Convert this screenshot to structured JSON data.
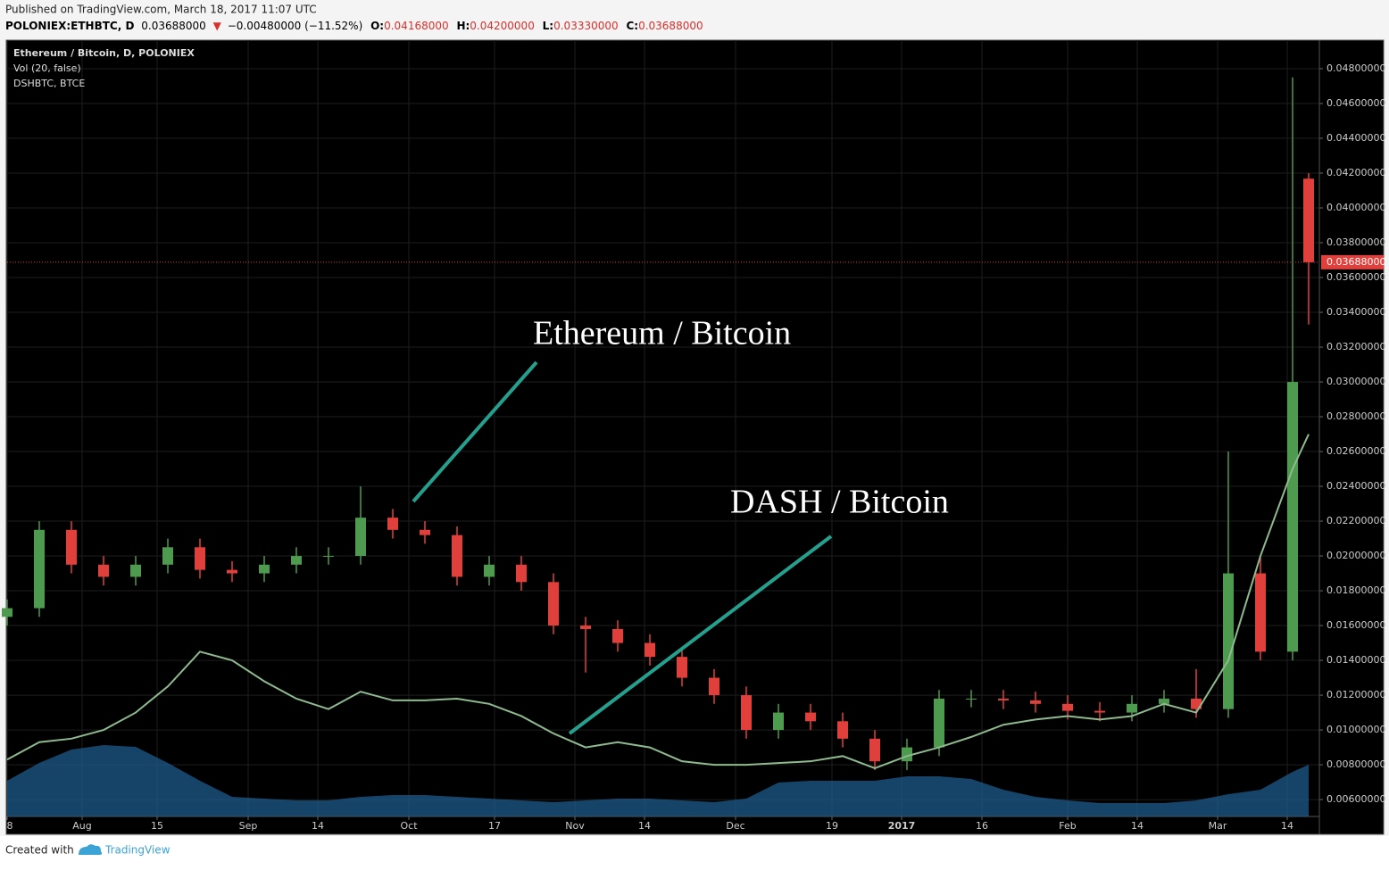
{
  "header": {
    "published": "Published on TradingView.com, March 18, 2017 11:07 UTC",
    "symbol": "POLONIEX:ETHBTC, D",
    "price": "0.03688000",
    "change": "−0.00480000 (−11.52%)",
    "ohlc": [
      {
        "key": "O:",
        "value": "0.04168000"
      },
      {
        "key": "H:",
        "value": "0.04200000"
      },
      {
        "key": "L:",
        "value": "0.03330000"
      },
      {
        "key": "C:",
        "value": "0.03688000"
      }
    ]
  },
  "chart_data": {
    "type": "candlestick",
    "x": [
      0,
      6,
      12,
      18,
      24,
      30,
      36,
      42,
      48,
      54,
      60,
      66,
      72,
      78,
      84,
      90,
      96,
      102,
      108,
      114,
      120,
      126,
      132,
      138,
      144,
      150,
      156,
      162,
      168,
      174,
      180,
      186,
      192,
      198,
      204,
      210,
      216,
      222,
      228,
      234,
      240,
      243
    ],
    "series": [
      {
        "name": "Ethereum / Bitcoin, D, POLONIEX",
        "type": "candlestick",
        "up_color": "#4e9a4e",
        "down_color": "#e0403c",
        "open": [
          0.0165,
          0.017,
          0.0215,
          0.0195,
          0.0188,
          0.0195,
          0.0205,
          0.0192,
          0.019,
          0.0195,
          0.02,
          0.02,
          0.0222,
          0.0215,
          0.0212,
          0.0188,
          0.0195,
          0.0185,
          0.016,
          0.0158,
          0.015,
          0.0142,
          0.013,
          0.012,
          0.01,
          0.011,
          0.0105,
          0.0095,
          0.0082,
          0.009,
          0.0118,
          0.0118,
          0.0117,
          0.0115,
          0.0111,
          0.011,
          0.0115,
          0.0118,
          0.0112,
          0.019,
          0.0145,
          0.04168
        ],
        "high": [
          0.0175,
          0.022,
          0.022,
          0.02,
          0.02,
          0.021,
          0.021,
          0.0197,
          0.02,
          0.0205,
          0.0205,
          0.024,
          0.0227,
          0.022,
          0.0217,
          0.02,
          0.02,
          0.019,
          0.0165,
          0.0163,
          0.0155,
          0.0147,
          0.0135,
          0.0125,
          0.0115,
          0.0115,
          0.011,
          0.01,
          0.0095,
          0.0123,
          0.0123,
          0.0123,
          0.0122,
          0.012,
          0.0116,
          0.012,
          0.0123,
          0.0135,
          0.026,
          0.02,
          0.0475,
          0.042
        ],
        "low": [
          0.016,
          0.0165,
          0.019,
          0.0183,
          0.0183,
          0.019,
          0.0187,
          0.0185,
          0.0185,
          0.019,
          0.0195,
          0.0195,
          0.021,
          0.0207,
          0.0183,
          0.0183,
          0.018,
          0.0155,
          0.0133,
          0.0145,
          0.0137,
          0.0125,
          0.0115,
          0.0095,
          0.0095,
          0.01,
          0.009,
          0.0077,
          0.0077,
          0.0085,
          0.0113,
          0.0112,
          0.011,
          0.0106,
          0.0105,
          0.0105,
          0.011,
          0.0107,
          0.0107,
          0.014,
          0.014,
          0.0333
        ],
        "close": [
          0.017,
          0.0215,
          0.0195,
          0.0188,
          0.0195,
          0.0205,
          0.0192,
          0.019,
          0.0195,
          0.02,
          0.02,
          0.0222,
          0.0215,
          0.0212,
          0.0188,
          0.0195,
          0.0185,
          0.016,
          0.0158,
          0.015,
          0.0142,
          0.013,
          0.012,
          0.01,
          0.011,
          0.0105,
          0.0095,
          0.0082,
          0.009,
          0.0118,
          0.0118,
          0.0117,
          0.0115,
          0.0111,
          0.011,
          0.0115,
          0.0118,
          0.0112,
          0.019,
          0.0145,
          0.03,
          0.03688
        ]
      },
      {
        "name": "Vol (20, false)",
        "type": "area",
        "color": "#1d5b8c",
        "values": [
          40,
          60,
          75,
          80,
          78,
          60,
          40,
          22,
          20,
          18,
          18,
          22,
          24,
          24,
          22,
          20,
          18,
          16,
          18,
          20,
          20,
          18,
          16,
          20,
          38,
          40,
          40,
          40,
          45,
          45,
          42,
          30,
          22,
          18,
          15,
          15,
          15,
          18,
          25,
          30,
          50,
          58
        ]
      },
      {
        "name": "DSHBTC, BTCE",
        "type": "line",
        "color": "#8fb98f",
        "values": [
          0.0083,
          0.0093,
          0.0095,
          0.01,
          0.011,
          0.0125,
          0.0145,
          0.014,
          0.0128,
          0.0118,
          0.0112,
          0.0122,
          0.0117,
          0.0117,
          0.0118,
          0.0115,
          0.0108,
          0.0098,
          0.009,
          0.0093,
          0.009,
          0.0082,
          0.008,
          0.008,
          0.0081,
          0.0082,
          0.0085,
          0.0078,
          0.0085,
          0.009,
          0.0096,
          0.0103,
          0.0106,
          0.0108,
          0.0106,
          0.0108,
          0.0115,
          0.011,
          0.014,
          0.02,
          0.025,
          0.027
        ]
      }
    ],
    "xlim": [
      0,
      245
    ],
    "xticks": [
      {
        "value": 0,
        "label": "8"
      },
      {
        "value": 14,
        "label": "Aug"
      },
      {
        "value": 28,
        "label": "15"
      },
      {
        "value": 45,
        "label": "Sep"
      },
      {
        "value": 58,
        "label": "14"
      },
      {
        "value": 75,
        "label": "Oct"
      },
      {
        "value": 91,
        "label": "17"
      },
      {
        "value": 106,
        "label": "Nov"
      },
      {
        "value": 119,
        "label": "14"
      },
      {
        "value": 136,
        "label": "Dec"
      },
      {
        "value": 154,
        "label": "19"
      },
      {
        "value": 167,
        "label": "2017"
      },
      {
        "value": 182,
        "label": "16"
      },
      {
        "value": 198,
        "label": "Feb"
      },
      {
        "value": 211,
        "label": "14"
      },
      {
        "value": 226,
        "label": "Mar"
      },
      {
        "value": 239,
        "label": "14"
      }
    ],
    "ylim": [
      0.00503,
      0.04964
    ],
    "yticks": [
      {
        "value": 0.006,
        "label": "0.00600000"
      },
      {
        "value": 0.008,
        "label": "0.00800000"
      },
      {
        "value": 0.01,
        "label": "0.01000000"
      },
      {
        "value": 0.012,
        "label": "0.01200000"
      },
      {
        "value": 0.014,
        "label": "0.01400000"
      },
      {
        "value": 0.016,
        "label": "0.01600000"
      },
      {
        "value": 0.018,
        "label": "0.01800000"
      },
      {
        "value": 0.02,
        "label": "0.02000000"
      },
      {
        "value": 0.022,
        "label": "0.02200000"
      },
      {
        "value": 0.024,
        "label": "0.02400000"
      },
      {
        "value": 0.026,
        "label": "0.02600000"
      },
      {
        "value": 0.028,
        "label": "0.02800000"
      },
      {
        "value": 0.03,
        "label": "0.03000000"
      },
      {
        "value": 0.032,
        "label": "0.03200000"
      },
      {
        "value": 0.034,
        "label": "0.03400000"
      },
      {
        "value": 0.036,
        "label": "0.03600000"
      },
      {
        "value": 0.038,
        "label": "0.03800000"
      },
      {
        "value": 0.04,
        "label": "0.04000000"
      },
      {
        "value": 0.042,
        "label": "0.04200000"
      },
      {
        "value": 0.044,
        "label": "0.04400000"
      },
      {
        "value": 0.046,
        "label": "0.04600000"
      },
      {
        "value": 0.048,
        "label": "0.04800000"
      }
    ],
    "grid": true,
    "last_price": {
      "value": 0.03688,
      "label": "0.03688000"
    },
    "annotations": [
      "Ethereum / Bitcoin",
      "DASH / Bitcoin"
    ]
  },
  "footer": {
    "created": "Created with",
    "brand": "TradingView"
  }
}
